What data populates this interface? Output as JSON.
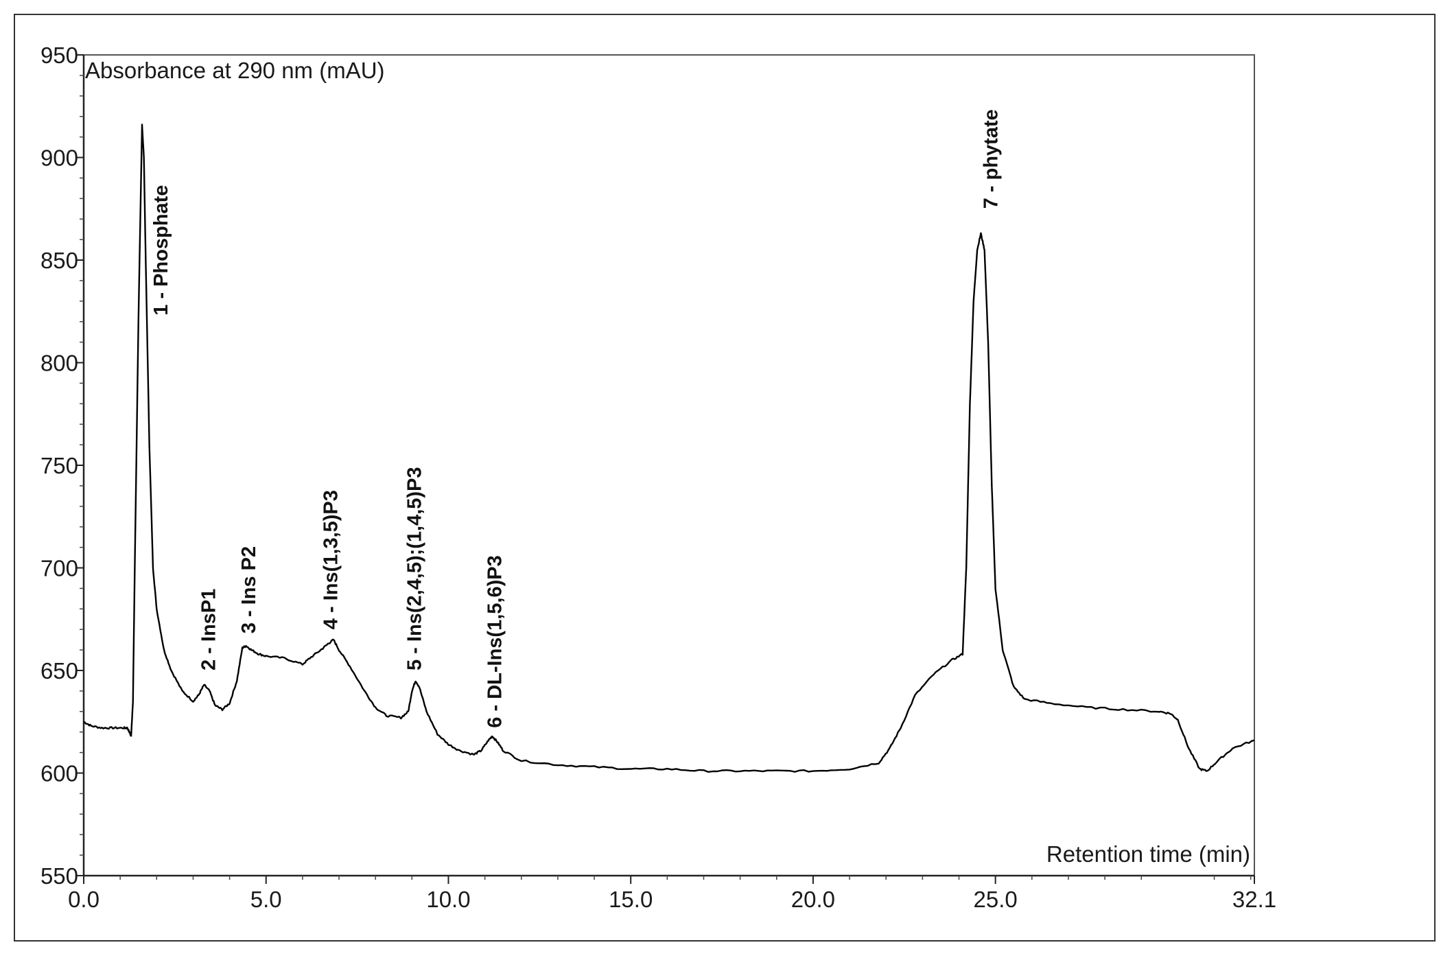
{
  "chart_data": {
    "type": "line",
    "ylabel": "Absorbance at 290 nm (mAU)",
    "xlabel": "Retention time (min)",
    "xlim": [
      0,
      32.1
    ],
    "ylim": [
      550,
      950
    ],
    "x_ticks": [
      0,
      5,
      10,
      15,
      20,
      25,
      32.1
    ],
    "x_tick_labels": [
      "0.0",
      "5.0",
      "10.0",
      "15.0",
      "20.0",
      "25.0",
      "32.1"
    ],
    "y_ticks": [
      550,
      600,
      650,
      700,
      750,
      800,
      850,
      900,
      950
    ],
    "y_tick_labels": [
      "550",
      "600",
      "650",
      "700",
      "750",
      "800",
      "850",
      "900",
      "950"
    ],
    "grid": false,
    "line_color": "#000000",
    "series": [
      {
        "x": [
          0.0,
          0.2,
          0.5,
          0.8,
          1.1,
          1.2,
          1.3,
          1.35,
          1.4,
          1.5,
          1.6,
          1.65,
          1.7,
          1.8,
          1.9,
          2.0,
          2.2,
          2.4,
          2.7,
          3.0,
          3.15,
          3.3,
          3.45,
          3.6,
          3.8,
          4.0,
          4.2,
          4.35,
          4.45,
          4.6,
          4.8,
          5.0,
          5.5,
          6.0,
          6.2,
          6.5,
          6.7,
          6.85,
          7.0,
          7.3,
          7.7,
          8.0,
          8.3,
          8.7,
          8.9,
          9.0,
          9.1,
          9.2,
          9.4,
          9.7,
          10.0,
          10.3,
          10.7,
          10.9,
          11.1,
          11.2,
          11.35,
          11.5,
          12.0,
          13.0,
          14.0,
          15.0,
          16.0,
          17.0,
          18.0,
          19.0,
          20.0,
          21.0,
          21.8,
          22.1,
          22.4,
          22.8,
          23.3,
          23.8,
          24.1,
          24.2,
          24.3,
          24.4,
          24.5,
          24.6,
          24.7,
          24.8,
          24.9,
          25.0,
          25.2,
          25.5,
          25.8,
          26.5,
          27.5,
          28.5,
          29.5,
          29.8,
          30.0,
          30.3,
          30.6,
          30.8,
          31.1,
          31.5,
          32.1
        ],
        "y": [
          625,
          623,
          622,
          622,
          622,
          622,
          618,
          635,
          700,
          820,
          916,
          900,
          850,
          760,
          700,
          680,
          660,
          650,
          640,
          635,
          638,
          643,
          640,
          633,
          631,
          634,
          645,
          661,
          662,
          660,
          658,
          657,
          656,
          653,
          656,
          660,
          663,
          665,
          660,
          652,
          640,
          632,
          628,
          627,
          630,
          640,
          645,
          642,
          630,
          619,
          614,
          611,
          609,
          611,
          616,
          618,
          615,
          611,
          606,
          604,
          603,
          602,
          602,
          601,
          601,
          601,
          601,
          602,
          605,
          612,
          622,
          638,
          648,
          655,
          658,
          700,
          780,
          830,
          855,
          863,
          855,
          810,
          740,
          690,
          660,
          642,
          636,
          634,
          632,
          631,
          630,
          629,
          626,
          612,
          602,
          601,
          606,
          612,
          616
        ]
      }
    ],
    "annotations": [
      {
        "text": "1 - Phosphate",
        "x": 2.3,
        "y": 823
      },
      {
        "text": "2 - InsP1",
        "x": 3.6,
        "y": 650
      },
      {
        "text": "3 - Ins P2",
        "x": 4.7,
        "y": 668
      },
      {
        "text": "4 - Ins(1,3,5)P3",
        "x": 6.95,
        "y": 670
      },
      {
        "text": "5 - Ins(2,4,5);(1,4,5)P3",
        "x": 9.25,
        "y": 650
      },
      {
        "text": "6 - DL-Ins(1,5,6)P3",
        "x": 11.45,
        "y": 622
      },
      {
        "text": "7 - phytate",
        "x": 25.05,
        "y": 875
      }
    ]
  }
}
